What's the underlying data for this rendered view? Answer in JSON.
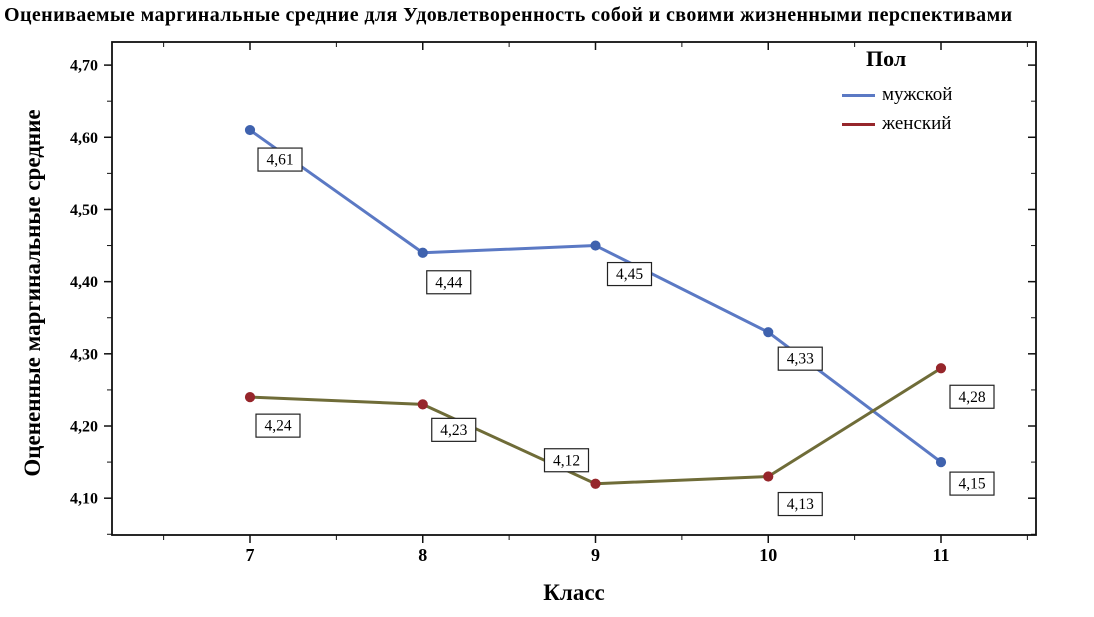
{
  "chart_data": {
    "type": "line",
    "title": "Оцениваемые маргинальные средние для Удовлетворенность собой и своими жизненными перспективами",
    "xlabel": "Класс",
    "ylabel": "Оцененные маргинальные средние",
    "categories": [
      "7",
      "8",
      "9",
      "10",
      "11"
    ],
    "ylim": [
      4.049,
      4.732
    ],
    "y_ticks": [
      {
        "value": 4.1,
        "label": "4,10"
      },
      {
        "value": 4.2,
        "label": "4,20"
      },
      {
        "value": 4.3,
        "label": "4,30"
      },
      {
        "value": 4.4,
        "label": "4,40"
      },
      {
        "value": 4.5,
        "label": "4,50"
      },
      {
        "value": 4.6,
        "label": "4,60"
      },
      {
        "value": 4.7,
        "label": "4,70"
      }
    ],
    "grid": false,
    "legend": {
      "title": "Пол",
      "position": "top-right-inside"
    },
    "series": [
      {
        "name": "мужской",
        "line_color": "#5b79c4",
        "marker_color": "#3f62ae",
        "values": [
          4.61,
          4.44,
          4.45,
          4.33,
          4.15
        ],
        "labels": [
          "4,61",
          "4,44",
          "4,45",
          "4,33",
          "4,15"
        ],
        "label_offsets": [
          [
            8,
            18
          ],
          [
            4,
            18
          ],
          [
            12,
            17
          ],
          [
            10,
            15
          ],
          [
            9,
            10
          ]
        ]
      },
      {
        "name": "женский",
        "line_color": "#6f6c38",
        "marker_color": "#96262b",
        "values": [
          4.24,
          4.23,
          4.12,
          4.13,
          4.28
        ],
        "labels": [
          "4,24",
          "4,23",
          "4,12",
          "4,13",
          "4,28"
        ],
        "label_offsets": [
          [
            6,
            17
          ],
          [
            9,
            14
          ],
          [
            -51,
            -35
          ],
          [
            10,
            16
          ],
          [
            9,
            17
          ]
        ]
      }
    ]
  }
}
